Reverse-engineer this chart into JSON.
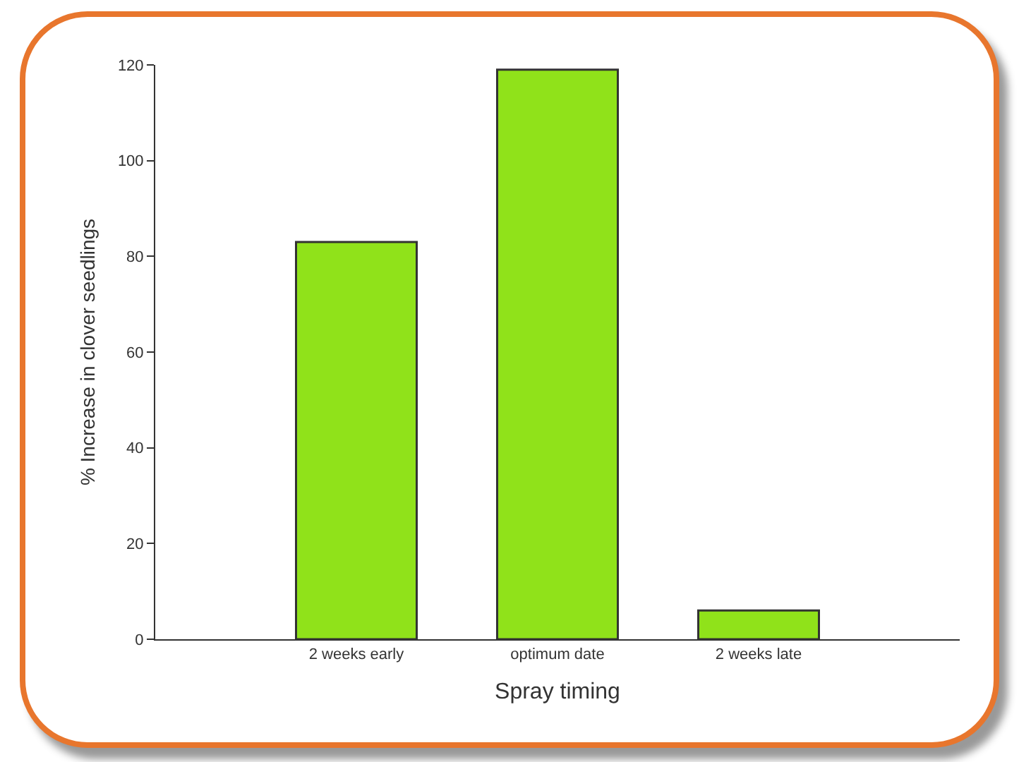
{
  "chart_data": {
    "type": "bar",
    "xlabel": "Spray timing",
    "ylabel": "% Increase in clover seedlings",
    "categories": [
      "2 weeks early",
      "optimum date",
      "2 weeks late"
    ],
    "values": [
      83,
      119,
      6
    ],
    "color": "#90e21a",
    "ylim": [
      0,
      120
    ],
    "yticks": [
      0,
      20,
      40,
      60,
      80,
      100,
      120
    ],
    "grid": false,
    "legend": false
  }
}
